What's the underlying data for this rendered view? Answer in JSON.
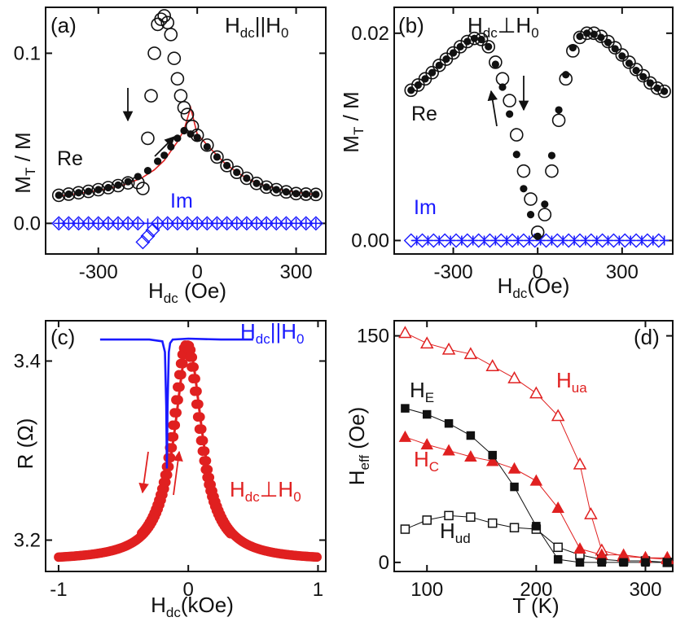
{
  "chart_data": [
    {
      "panel_label": "(a)",
      "type": "scatter",
      "annotation": "H_dc || H_0",
      "xlabel": "H_dc (Oe)",
      "ylabel": "M_T / M",
      "xlim": [
        -460,
        390
      ],
      "ylim": [
        -0.018,
        0.127
      ],
      "xticks": [
        -300,
        0,
        300
      ],
      "yticks": [
        0.0,
        0.1
      ],
      "ytick_labels": [
        "0.0",
        "0.1"
      ],
      "arrows": [
        "down arrow near H ≈ -180 Oe",
        "up-right arrow near H ≈ -80 Oe"
      ],
      "series": [
        {
          "name": "Re",
          "style": "open circle, black, decreasing field",
          "x": [
            -420,
            -390,
            -360,
            -330,
            -300,
            -270,
            -240,
            -210,
            -180,
            -165,
            -150,
            -140,
            -130,
            -120,
            -110,
            -100,
            -90,
            -80,
            -70,
            -60,
            -50,
            -40,
            -30,
            -15,
            0,
            30,
            60,
            90,
            120,
            150,
            180,
            210,
            240,
            270,
            300,
            330,
            360
          ],
          "y": [
            0.0165,
            0.0172,
            0.018,
            0.0188,
            0.0198,
            0.021,
            0.0222,
            0.0238,
            0.024,
            0.0205,
            0.05,
            0.075,
            0.1,
            0.117,
            0.12,
            0.122,
            0.118,
            0.111,
            0.097,
            0.085,
            0.075,
            0.068,
            0.064,
            0.057,
            0.0518,
            0.046,
            0.039,
            0.034,
            0.03,
            0.0265,
            0.0235,
            0.0213,
            0.0198,
            0.0185,
            0.0175,
            0.0172,
            0.017
          ]
        },
        {
          "name": "Re",
          "style": "filled circle, black, increasing field",
          "x": [
            -420,
            -390,
            -360,
            -330,
            -300,
            -270,
            -240,
            -210,
            -180,
            -150,
            -120,
            -100,
            -80,
            -60,
            -40,
            -20,
            0,
            30,
            60,
            90,
            120,
            150,
            180,
            210,
            240,
            270,
            300,
            330,
            360
          ],
          "y": [
            0.0165,
            0.0172,
            0.018,
            0.0188,
            0.0198,
            0.021,
            0.0225,
            0.0245,
            0.0275,
            0.031,
            0.0365,
            0.04,
            0.045,
            0.05,
            0.0545,
            0.0525,
            0.0505,
            0.045,
            0.039,
            0.034,
            0.03,
            0.0265,
            0.0235,
            0.0213,
            0.0198,
            0.0185,
            0.0175,
            0.0172,
            0.017
          ]
        },
        {
          "name": "fit",
          "style": "red line",
          "x": [
            -420,
            -350,
            -280,
            -220,
            -170,
            -130,
            -100,
            -80,
            -60,
            -40,
            -20,
            0,
            40,
            80,
            120,
            160,
            200,
            260,
            330,
            360
          ],
          "y": [
            0.016,
            0.0178,
            0.02,
            0.0228,
            0.0265,
            0.0315,
            0.037,
            0.0425,
            0.048,
            0.055,
            0.068,
            0.0525,
            0.044,
            0.036,
            0.03,
            0.0255,
            0.0225,
            0.0195,
            0.0175,
            0.017
          ]
        },
        {
          "name": "Im",
          "style": "open diamond, blue",
          "x": [
            -420,
            -390,
            -360,
            -330,
            -300,
            -270,
            -240,
            -210,
            -180,
            -165,
            -150,
            -135,
            -120,
            -90,
            -60,
            -30,
            0,
            30,
            60,
            90,
            120,
            150,
            180,
            210,
            240,
            270,
            300,
            330,
            360
          ],
          "y": [
            0,
            0,
            0,
            0,
            0,
            0,
            0,
            0,
            0,
            -0.011,
            -0.0075,
            -0.004,
            0,
            0,
            0,
            0,
            0,
            0,
            0,
            0,
            0,
            0,
            0,
            0,
            0,
            0,
            0,
            0,
            0
          ]
        },
        {
          "name": "Im",
          "style": "plus, blue",
          "x": [
            -420,
            -390,
            -360,
            -330,
            -300,
            -270,
            -240,
            -210,
            -180,
            -150,
            -120,
            -90,
            -60,
            -30,
            0,
            30,
            60,
            90,
            120,
            150,
            180,
            210,
            240,
            270,
            300,
            330,
            360
          ],
          "y": [
            0,
            0,
            0,
            0,
            0,
            0,
            0,
            0,
            0,
            0,
            0,
            0,
            0,
            0,
            0,
            0,
            0,
            0,
            0,
            0,
            0,
            0,
            0,
            0,
            0,
            0,
            0
          ]
        }
      ]
    },
    {
      "panel_label": "(b)",
      "type": "scatter",
      "annotation": "H_dc ⊥ H_0",
      "xlabel": "H_dc (Oe)",
      "ylabel": "M_T / M",
      "xlim": [
        -510,
        480
      ],
      "ylim": [
        -0.0013,
        0.0225
      ],
      "xticks": [
        -300,
        0,
        300
      ],
      "yticks": [
        0.0,
        0.02
      ],
      "ytick_labels": [
        "0.00",
        "0.02"
      ],
      "arrows": [
        "up arrow near H ≈ -110 Oe",
        "down arrow near H ≈ -40 Oe"
      ],
      "series": [
        {
          "name": "Re",
          "style": "open circle, black",
          "x": [
            -450,
            -425,
            -400,
            -375,
            -350,
            -325,
            -300,
            -275,
            -250,
            -225,
            -200,
            -175,
            -150,
            -125,
            -100,
            -75,
            -50,
            -25,
            0,
            25,
            50,
            75,
            100,
            125,
            150,
            175,
            200,
            225,
            250,
            275,
            300,
            325,
            350,
            375,
            400,
            425,
            450
          ],
          "y": [
            0.0145,
            0.015,
            0.0156,
            0.0162,
            0.0169,
            0.0175,
            0.0181,
            0.0187,
            0.0192,
            0.0195,
            0.0194,
            0.0187,
            0.0172,
            0.0156,
            0.0135,
            0.0102,
            0.0067,
            0.004,
            0.0008,
            0.0025,
            0.0067,
            0.0116,
            0.0156,
            0.0183,
            0.0196,
            0.02,
            0.02,
            0.0197,
            0.0192,
            0.0186,
            0.0179,
            0.0172,
            0.0165,
            0.0159,
            0.0152,
            0.0147,
            0.0144
          ]
        },
        {
          "name": "Re",
          "style": "filled circle, black",
          "x": [
            -450,
            -425,
            -400,
            -375,
            -350,
            -325,
            -300,
            -275,
            -250,
            -225,
            -200,
            -175,
            -150,
            -125,
            -100,
            -75,
            -50,
            -25,
            0,
            25,
            50,
            75,
            100,
            125,
            150,
            175,
            200,
            225,
            250,
            275,
            300,
            325,
            350,
            375,
            400,
            425,
            450
          ],
          "y": [
            0.0145,
            0.015,
            0.0156,
            0.0162,
            0.0169,
            0.0175,
            0.0181,
            0.0187,
            0.0192,
            0.0195,
            0.0194,
            0.0187,
            0.017,
            0.0148,
            0.0122,
            0.0083,
            0.005,
            0.0025,
            0.0004,
            0.0035,
            0.0082,
            0.0126,
            0.016,
            0.0186,
            0.0197,
            0.02,
            0.0199,
            0.0196,
            0.0191,
            0.0185,
            0.0178,
            0.0171,
            0.0164,
            0.0158,
            0.0152,
            0.0147,
            0.0144
          ]
        },
        {
          "name": "Im",
          "style": "open diamond + plus, blue",
          "x": [
            -450,
            -410,
            -370,
            -330,
            -290,
            -250,
            -210,
            -170,
            -130,
            -90,
            -50,
            -10,
            30,
            70,
            110,
            150,
            190,
            230,
            270,
            310,
            350,
            390,
            430
          ],
          "y": [
            0,
            0,
            0,
            0,
            0,
            0,
            0,
            0,
            0,
            0,
            0,
            0,
            0,
            0,
            0,
            0,
            0,
            0,
            0,
            0,
            0,
            0,
            0
          ]
        }
      ]
    },
    {
      "panel_label": "(c)",
      "type": "line",
      "xlabel": "H_dc (kOe)",
      "ylabel": "R (Ω)",
      "xlim": [
        -1.1,
        1.06
      ],
      "ylim": [
        3.165,
        3.445
      ],
      "xticks": [
        -1,
        0,
        1
      ],
      "xtick_labels": [
        "-1",
        "0",
        "1"
      ],
      "yticks": [
        3.2,
        3.4
      ],
      "ytick_labels": [
        "3.2",
        "3.4"
      ],
      "arrows": [
        "down arrow near H ≈ -0.25 kOe",
        "up arrow near H ≈ -0.12 kOe"
      ],
      "series": [
        {
          "name": "H_dc || H_0",
          "style": "blue line",
          "x": [
            -0.68,
            -0.3,
            -0.2,
            -0.18,
            -0.17,
            -0.165,
            -0.16,
            -0.15,
            -0.14,
            -0.12,
            0,
            0.25,
            0.5
          ],
          "y": [
            3.424,
            3.424,
            3.422,
            3.41,
            3.35,
            3.28,
            3.35,
            3.41,
            3.42,
            3.424,
            3.425,
            3.424,
            3.424
          ]
        },
        {
          "name": "H_dc ⊥ H_0",
          "style": "red filled circles with line",
          "peak_x": 0.0,
          "peak_y": 3.418,
          "base_y": 3.177,
          "half_width": 0.13,
          "note": "Lorentzian-like dip of R centered near H = 0 (two nearly overlapping sweeps)"
        }
      ]
    },
    {
      "panel_label": "(d)",
      "type": "line",
      "xlabel": "T (K)",
      "ylabel": "H_eff (Oe)",
      "xlim": [
        70,
        325
      ],
      "ylim": [
        -6,
        160
      ],
      "xticks": [
        100,
        200,
        300
      ],
      "yticks": [
        0,
        150
      ],
      "ytick_labels": [
        "0",
        "150"
      ],
      "series": [
        {
          "name": "H_ua",
          "style": "open triangle, red",
          "x": [
            80,
            100,
            120,
            140,
            160,
            180,
            200,
            220,
            240,
            250,
            260,
            280,
            300,
            320
          ],
          "y": [
            152,
            145,
            141,
            138,
            130,
            122,
            112,
            97,
            65,
            32,
            8,
            4,
            3,
            3
          ]
        },
        {
          "name": "H_E",
          "style": "filled square, black",
          "x": [
            80,
            100,
            120,
            140,
            160,
            180,
            200,
            220,
            240,
            260,
            280,
            300,
            320
          ],
          "y": [
            102,
            98,
            92,
            84,
            71,
            50,
            24,
            2,
            0,
            0,
            0,
            0,
            0
          ]
        },
        {
          "name": "H_C",
          "style": "filled triangle, red",
          "x": [
            80,
            100,
            120,
            140,
            160,
            180,
            200,
            220,
            240,
            260,
            280,
            300,
            320
          ],
          "y": [
            83,
            78,
            74,
            70,
            67,
            62,
            54,
            36,
            9,
            5,
            5,
            3,
            2
          ]
        },
        {
          "name": "H_ud",
          "style": "open square, black",
          "x": [
            80,
            100,
            120,
            140,
            160,
            180,
            200,
            220,
            240,
            260,
            280,
            300,
            320
          ],
          "y": [
            22,
            28,
            31,
            30,
            26,
            23,
            22,
            10,
            5,
            2,
            1,
            1,
            0
          ]
        }
      ]
    }
  ]
}
